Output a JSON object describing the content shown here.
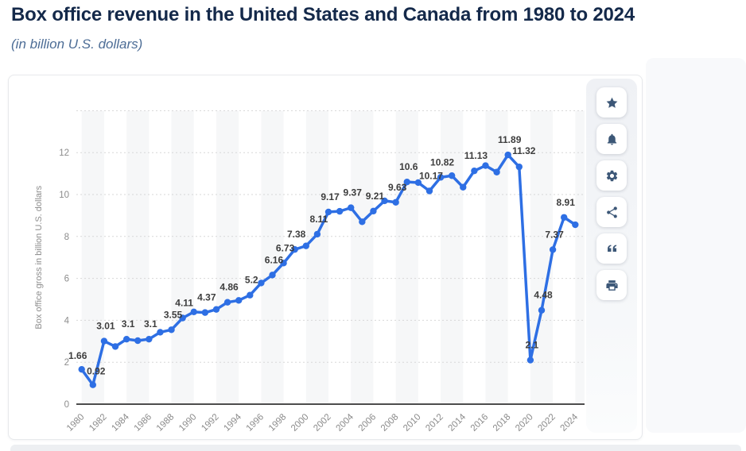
{
  "page": {
    "title": "Box office revenue in the United States and Canada from 1980 to 2024",
    "subtitle": "(in billion U.S. dollars)",
    "title_color": "#14294a",
    "subtitle_color": "#4d6d96"
  },
  "toolbar": {
    "buttons": [
      {
        "name": "favorite-button",
        "icon": "star-icon"
      },
      {
        "name": "notification-button",
        "icon": "bell-icon"
      },
      {
        "name": "settings-button",
        "icon": "gear-icon"
      },
      {
        "name": "share-button",
        "icon": "share-icon"
      },
      {
        "name": "cite-button",
        "icon": "quote-icon"
      },
      {
        "name": "print-button",
        "icon": "print-icon"
      }
    ]
  },
  "chart_data": {
    "type": "line",
    "title": "Box office revenue in the United States and Canada from 1980 to 2024",
    "subtitle": "(in billion U.S. dollars)",
    "xlabel": "",
    "ylabel": "Box office gross in billion U.S. dollars",
    "ylim": [
      0,
      14
    ],
    "y_ticks": [
      0,
      2,
      4,
      6,
      8,
      10,
      12
    ],
    "x_tick_labels": [
      "1980",
      "1982",
      "1984",
      "1986",
      "1988",
      "1990",
      "1992",
      "1994",
      "1996",
      "1998",
      "2000",
      "2002",
      "2004",
      "2006",
      "2008",
      "2010",
      "2012",
      "2014",
      "2016",
      "2018",
      "2020",
      "2022",
      "2024"
    ],
    "grid": "horizontal-dotted",
    "legend_position": "none",
    "line_color": "#2e6fe4",
    "label_color": "#3d3d3d",
    "band_color": "#f6f7f8",
    "series": [
      {
        "name": "Box office revenue",
        "points_format": [
          "year",
          "value",
          "shown_data_label"
        ],
        "points": [
          [
            1980,
            1.66,
            "1.66"
          ],
          [
            1981,
            0.92,
            "0.92"
          ],
          [
            1982,
            3.01,
            "3.01"
          ],
          [
            1983,
            2.75
          ],
          [
            1984,
            3.1,
            "3.1"
          ],
          [
            1985,
            3.03
          ],
          [
            1986,
            3.1,
            "3.1"
          ],
          [
            1987,
            3.43
          ],
          [
            1988,
            3.55,
            "3.55"
          ],
          [
            1989,
            4.11,
            "4.11"
          ],
          [
            1990,
            4.4
          ],
          [
            1991,
            4.37,
            "4.37"
          ],
          [
            1992,
            4.52
          ],
          [
            1993,
            4.86,
            "4.86"
          ],
          [
            1994,
            4.95
          ],
          [
            1995,
            5.2,
            "5.2"
          ],
          [
            1996,
            5.78
          ],
          [
            1997,
            6.16,
            "6.16"
          ],
          [
            1998,
            6.73,
            "6.73"
          ],
          [
            1999,
            7.38,
            "7.38"
          ],
          [
            2000,
            7.55
          ],
          [
            2001,
            8.11,
            "8.11"
          ],
          [
            2002,
            9.17,
            "9.17"
          ],
          [
            2003,
            9.2
          ],
          [
            2004,
            9.37,
            "9.37"
          ],
          [
            2005,
            8.7
          ],
          [
            2006,
            9.21,
            "9.21"
          ],
          [
            2007,
            9.7
          ],
          [
            2008,
            9.63,
            "9.63"
          ],
          [
            2009,
            10.6,
            "10.6"
          ],
          [
            2010,
            10.57
          ],
          [
            2011,
            10.17,
            "10.17"
          ],
          [
            2012,
            10.82,
            "10.82"
          ],
          [
            2013,
            10.9
          ],
          [
            2014,
            10.35
          ],
          [
            2015,
            11.13,
            "11.13"
          ],
          [
            2016,
            11.38
          ],
          [
            2017,
            11.07
          ],
          [
            2018,
            11.89,
            "11.89"
          ],
          [
            2019,
            11.32,
            "11.32"
          ],
          [
            2020,
            2.1,
            "2.1"
          ],
          [
            2021,
            4.48,
            "4.48"
          ],
          [
            2022,
            7.37,
            "7.37"
          ],
          [
            2023,
            8.91,
            "8.91"
          ],
          [
            2024,
            8.56
          ]
        ]
      }
    ]
  }
}
